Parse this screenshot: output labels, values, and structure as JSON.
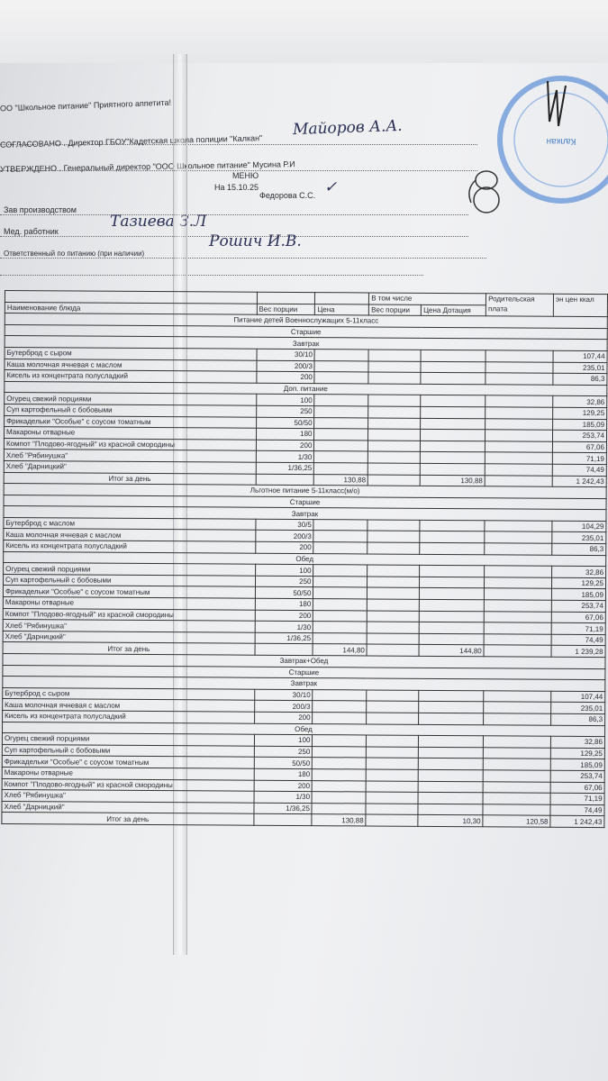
{
  "header": {
    "org": "ОО \"Школьное питание\" Приятного аппетита!",
    "agreed": "СОГЛАСОВАНО . Директор ГБОУ\"Кадетская школа полиции \"Калкан\"",
    "agreed_sign": "Майоров А.А.",
    "approved": "УТВЕРЖДЕНО . Генеральный директор \"ООО Школьное питание\" Мусина Р.И",
    "menu": "МЕНЮ",
    "date": "На 15.10.25",
    "fedorova": "Федорова С.С.",
    "prod_label": "Зав производством",
    "med_label": "Мед. работник",
    "med_sign": "Тазиева З.Л",
    "resp_label": "Ответственный по питанию (при наличии)",
    "resp_sign": "Рошич И.В.",
    "stamp_text": "Кадетская школа полиции «Калкан»"
  },
  "columns": {
    "name": "Наименование блюда",
    "weight": "Вес порции",
    "price": "Цена",
    "incl": "В том числе",
    "weight2": "Вес порции",
    "dotation": "Цена Дотация",
    "parent": "Родительская плата",
    "kcal": "эн цен ккал"
  },
  "sections": [
    {
      "title": "Питание детей Военнослужащих 5-11класс",
      "rows": [
        {
          "t": "h",
          "text": "Старшие"
        },
        {
          "t": "h",
          "text": "Завтрак"
        },
        {
          "name": "Бутерброд с сыром",
          "w": "30/10",
          "k": "107,44"
        },
        {
          "name": "Каша молочная ячневая с маслом",
          "w": "200/3",
          "k": "235,01"
        },
        {
          "name": "Кисель из концентрата полусладкий",
          "w": "200",
          "k": "86,3"
        },
        {
          "t": "h",
          "text": "Доп. питание"
        },
        {
          "name": "Огурец свежий порциями",
          "w": "100",
          "k": "32,86"
        },
        {
          "name": "Суп картофельный с бобовыми",
          "w": "250",
          "k": "129,25"
        },
        {
          "name": "Фрикадельки \"Особые\" с соусом томатным",
          "w": "50/50",
          "k": "185,09"
        },
        {
          "name": "Макароны отварные",
          "w": "180",
          "k": "253,74"
        },
        {
          "name": "Компот \"Плодово-ягодный\" из красной смородины",
          "w": "200",
          "k": "67,06"
        },
        {
          "name": "Хлеб \"Рябинушка\"",
          "w": "1/30",
          "k": "71,19"
        },
        {
          "name": "Хлеб \"Дарницкий\"",
          "w": "1/36,25",
          "k": "74,49"
        },
        {
          "t": "tot",
          "name": "Итог за день",
          "price": "130,88",
          "dotation": "130,88",
          "parent": "",
          "k": "1 242,43"
        }
      ]
    },
    {
      "title": "Льготное питание 5-11класс(м/о)",
      "rows": [
        {
          "t": "h",
          "text": "Старшие"
        },
        {
          "t": "h",
          "text": "Завтрак"
        },
        {
          "name": "Бутерброд с маслом",
          "w": "30/5",
          "k": "104,29"
        },
        {
          "name": "Каша молочная ячневая с маслом",
          "w": "200/3",
          "k": "235,01"
        },
        {
          "name": "Кисель из концентрата полусладкий",
          "w": "200",
          "k": "86,3"
        },
        {
          "t": "h",
          "text": "Обед"
        },
        {
          "name": "Огурец свежий порциями",
          "w": "100",
          "k": "32,86"
        },
        {
          "name": "Суп картофельный с бобовыми",
          "w": "250",
          "k": "129,25"
        },
        {
          "name": "Фрикадельки \"Особые\" с соусом томатным",
          "w": "50/50",
          "k": "185,09"
        },
        {
          "name": "Макароны отварные",
          "w": "180",
          "k": "253,74"
        },
        {
          "name": "Компот \"Плодово-ягодный\" из красной смородины",
          "w": "200",
          "k": "67,06"
        },
        {
          "name": "Хлеб \"Рябинушка\"",
          "w": "1/30",
          "k": "71,19"
        },
        {
          "name": "Хлеб \"Дарницкий\"",
          "w": "1/36,25",
          "k": "74,49"
        },
        {
          "t": "tot",
          "name": "Итог за день",
          "price": "144,80",
          "dotation": "144,80",
          "parent": "",
          "k": "1 239,28"
        }
      ]
    },
    {
      "title": "Завтрак+Обед",
      "rows": [
        {
          "t": "h",
          "text": "Старшие"
        },
        {
          "t": "h",
          "text": "Завтрак"
        },
        {
          "name": "Бутерброд с сыром",
          "w": "30/10",
          "k": "107,44"
        },
        {
          "name": "Каша молочная ячневая с маслом",
          "w": "200/3",
          "k": "235,01"
        },
        {
          "name": "Кисель из концентрата полусладкий",
          "w": "200",
          "k": "86,3"
        },
        {
          "t": "h",
          "text": "Обед"
        },
        {
          "name": "Огурец свежий порциями",
          "w": "100",
          "k": "32,86"
        },
        {
          "name": "Суп картофельный с бобовыми",
          "w": "250",
          "k": "129,25"
        },
        {
          "name": "Фрикадельки \"Особые\" с соусом томатным",
          "w": "50/50",
          "k": "185,09"
        },
        {
          "name": "Макароны отварные",
          "w": "180",
          "k": "253,74"
        },
        {
          "name": "Компот \"Плодово-ягодный\" из красной смородины",
          "w": "200",
          "k": "67,06"
        },
        {
          "name": "Хлеб \"Рябинушка\"",
          "w": "1/30",
          "k": "71,19"
        },
        {
          "name": "Хлеб \"Дарницкий\"",
          "w": "1/36,25",
          "k": "74,49"
        },
        {
          "t": "tot",
          "name": "Итог за день",
          "price": "130,88",
          "dotation": "10,30",
          "parent": "120,58",
          "k": "1 242,43"
        }
      ]
    }
  ]
}
